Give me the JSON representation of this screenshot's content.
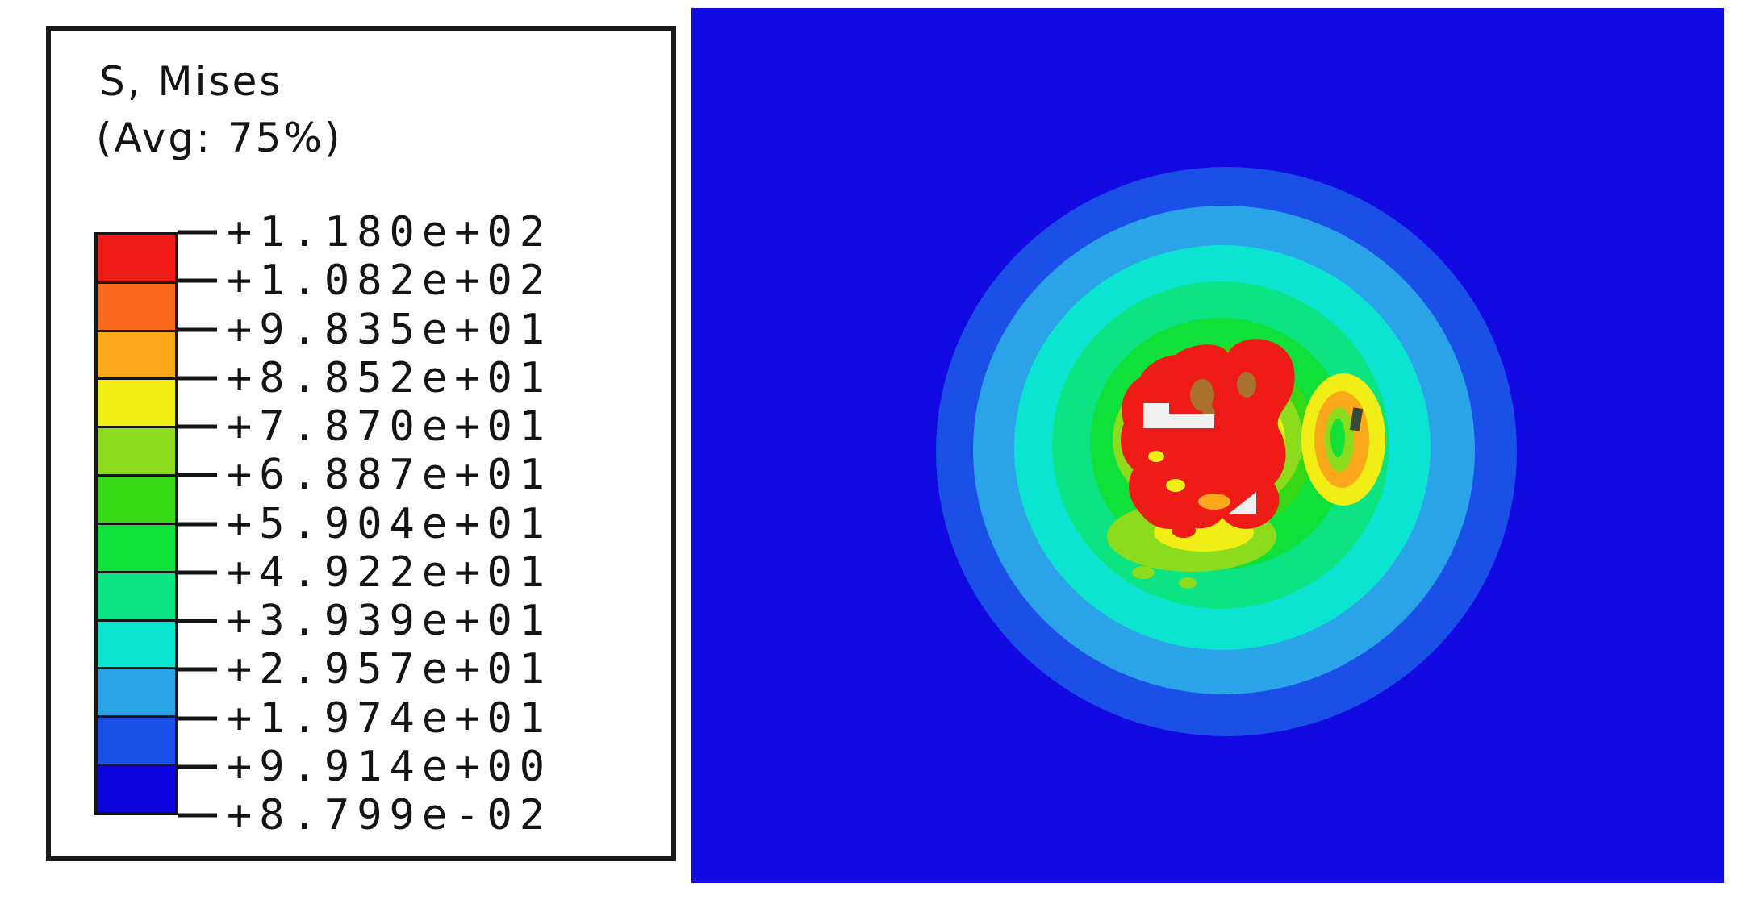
{
  "legend": {
    "title": "S, Mises",
    "subtitle": "(Avg: 75%)",
    "labels": [
      "+1.180e+02",
      "+1.082e+02",
      "+9.835e+01",
      "+8.852e+01",
      "+7.870e+01",
      "+6.887e+01",
      "+5.904e+01",
      "+4.922e+01",
      "+3.939e+01",
      "+2.957e+01",
      "+1.974e+01",
      "+9.914e+00",
      "+8.799e-02"
    ],
    "band_colors": [
      "#ee1b17",
      "#f96a1f",
      "#fba91a",
      "#f1ee15",
      "#8cdb1d",
      "#36d813",
      "#0fe03a",
      "#0ce383",
      "#0ce4d2",
      "#2aa3e8",
      "#1a50e8",
      "#0d04db"
    ],
    "border_color": "#1a1a1a",
    "tick_color": "#141414",
    "text_color": "#141414"
  },
  "contour": {
    "background": "#1209e3",
    "detail_colors": {
      "brown_spot": "#a9712d",
      "white_patch": "#f0f0f0",
      "dark_mark": "#3a4a3a"
    }
  },
  "chart_data": {
    "type": "heatmap",
    "subtype": "filled-contour-fea",
    "title": "S, Mises",
    "subtitle": "(Avg: 75%)",
    "legend_position": "left",
    "field_max": 118.0,
    "field_min": 0.08799,
    "levels_max_to_min": [
      118.0,
      108.2,
      98.35,
      88.52,
      78.7,
      68.87,
      59.04,
      49.22,
      39.39,
      29.57,
      19.74,
      9.914,
      0.08799
    ],
    "level_labels_max_to_min": [
      "+1.180e+02",
      "+1.082e+02",
      "+9.835e+01",
      "+8.852e+01",
      "+7.870e+01",
      "+6.887e+01",
      "+5.904e+01",
      "+4.922e+01",
      "+3.939e+01",
      "+2.957e+01",
      "+1.974e+01",
      "+9.914e+00",
      "+8.799e-02"
    ],
    "band_colors_max_to_min": [
      "#ee1b17",
      "#f96a1f",
      "#fba91a",
      "#f1ee15",
      "#8cdb1d",
      "#36d813",
      "#0fe03a",
      "#0ce383",
      "#0ce4d2",
      "#2aa3e8",
      "#1a50e8",
      "#0d04db"
    ],
    "description": "Square plate viewed normal to surface; von Mises stress field forms concentric near-circular contour rings around an irregular red maximum-stress zone slightly right of panel center; background (far field) sits in the lowest stress band.",
    "blob_center_rel": [
      0.52,
      0.51
    ],
    "ring_outer_radius_rel": [
      0.28,
      0.24,
      0.2,
      0.16,
      0.125,
      0.094
    ],
    "grid": false
  }
}
